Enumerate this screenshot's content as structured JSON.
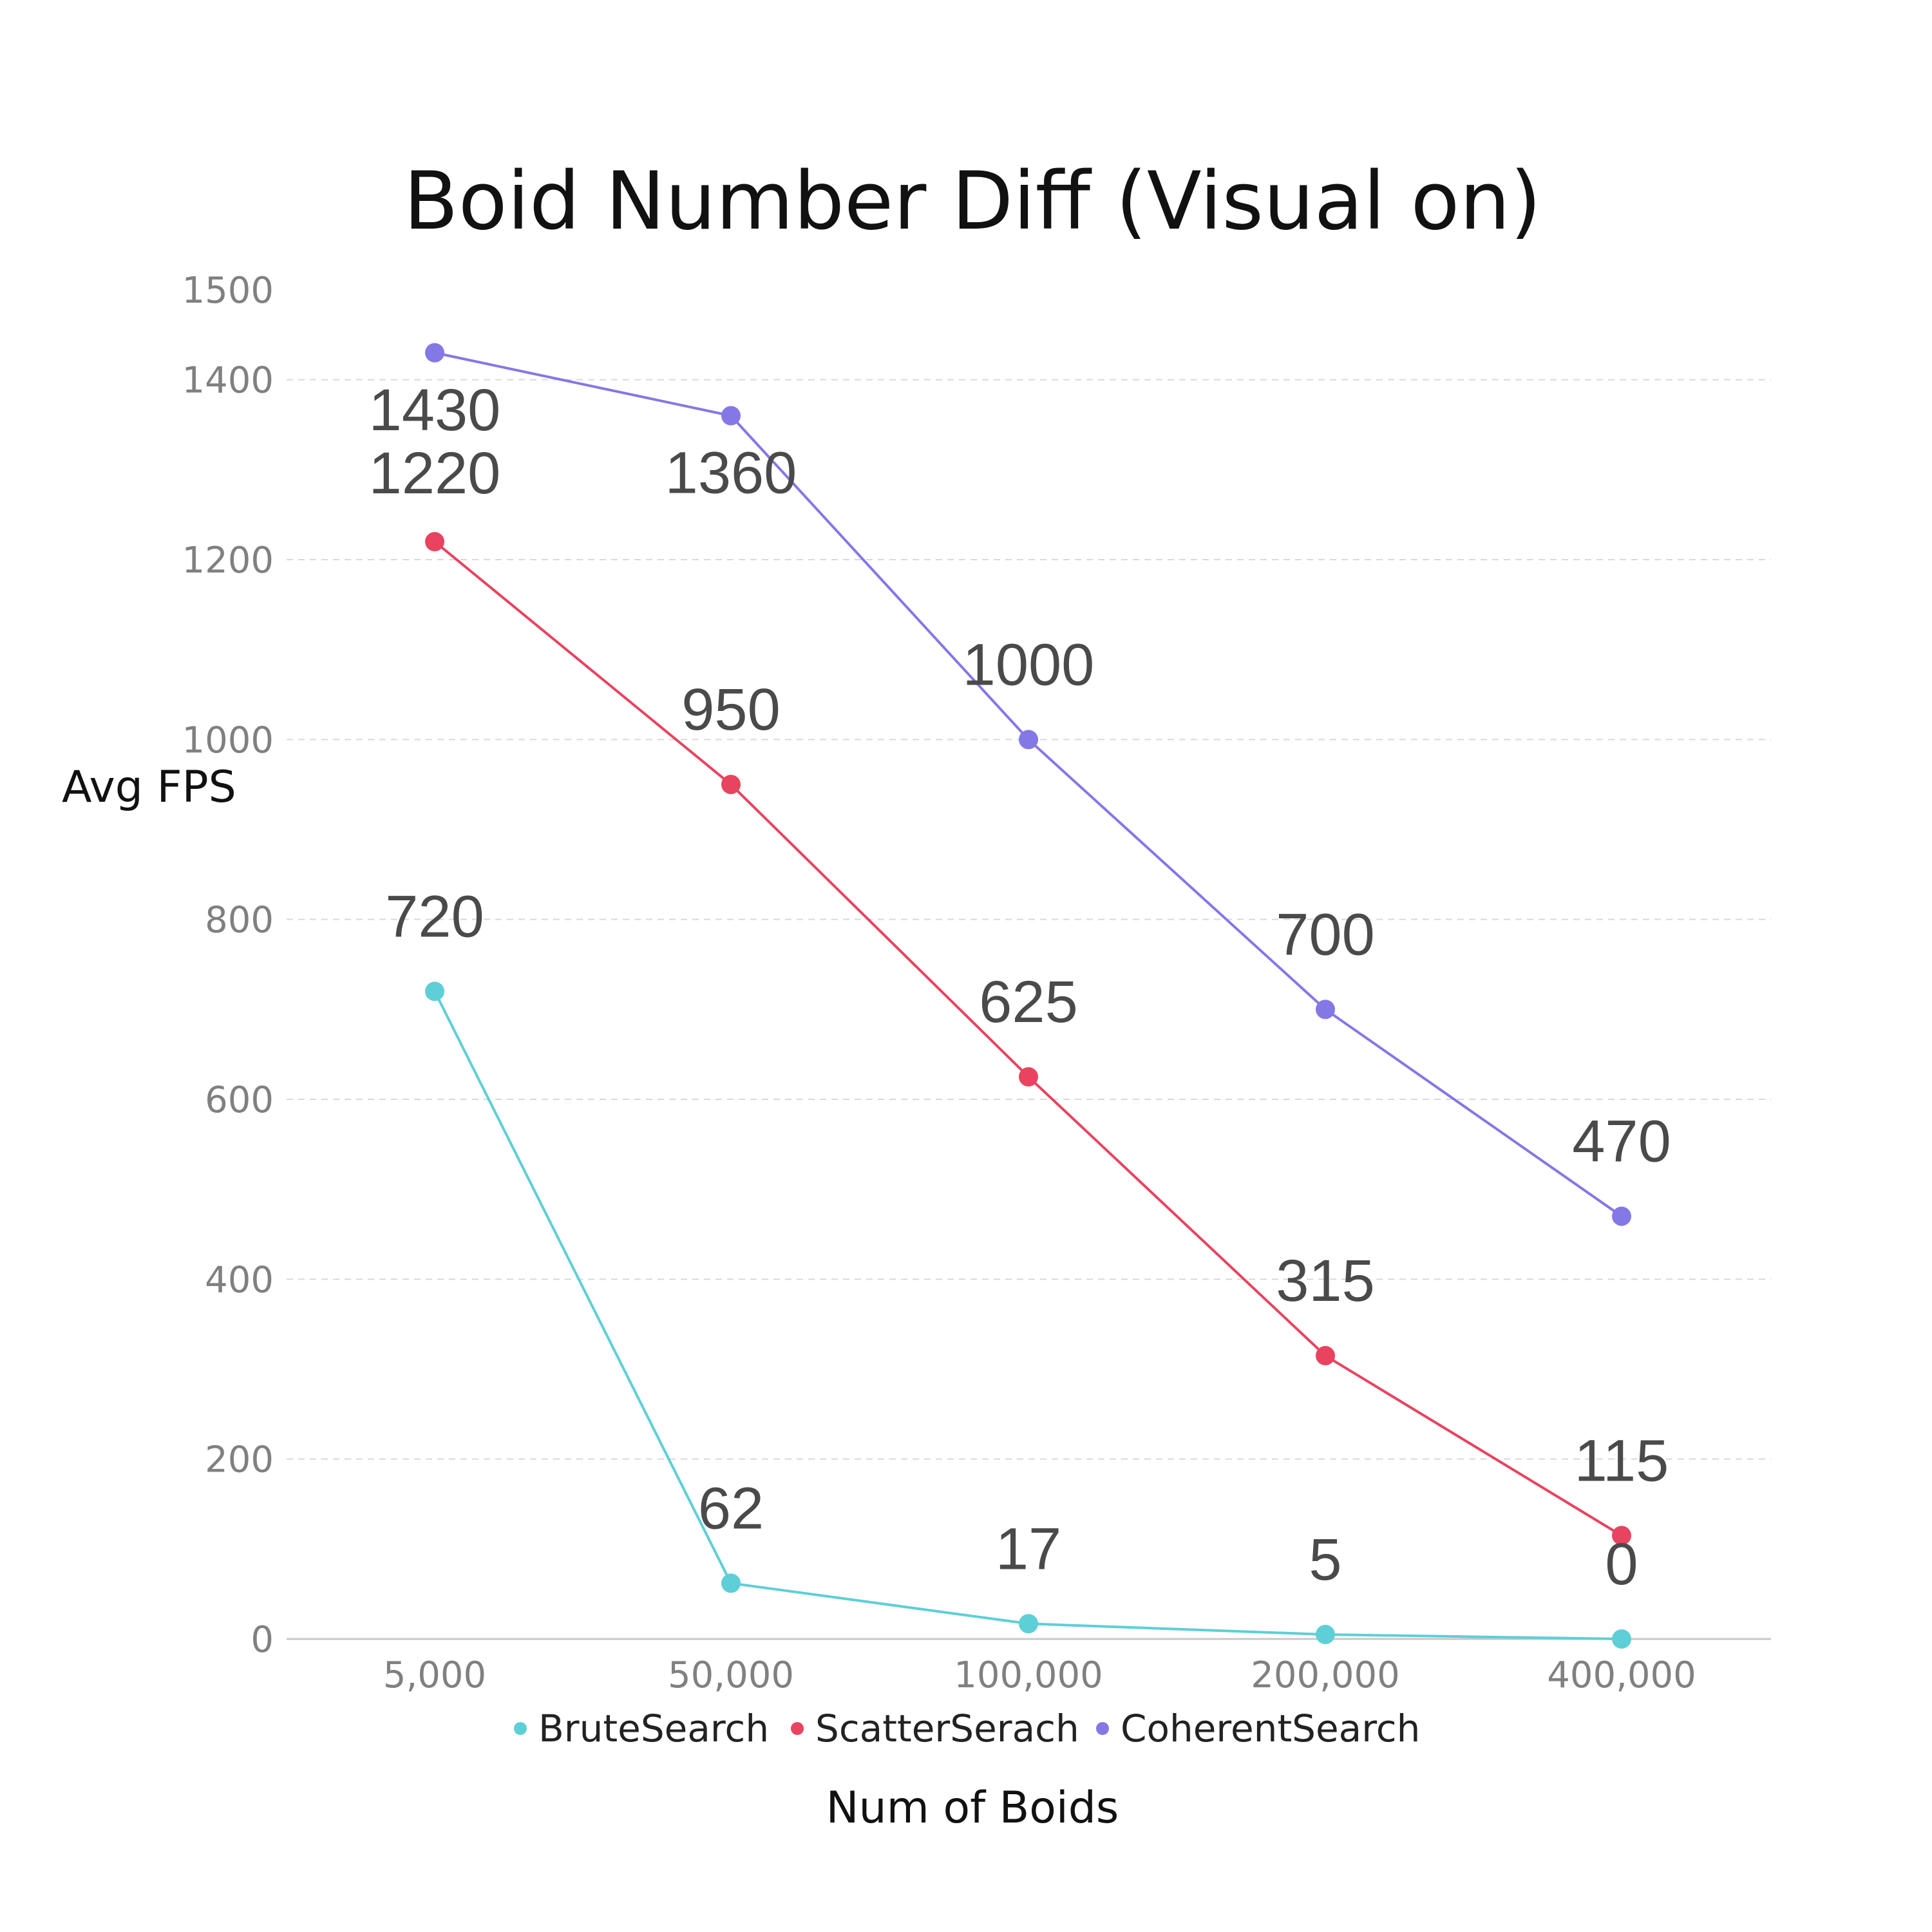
{
  "chart_data": {
    "type": "line",
    "title": "Boid Number Diff (Visual on)",
    "xlabel": "Num of Boids",
    "ylabel": "Avg FPS",
    "categories": [
      "5,000",
      "50,000",
      "100,000",
      "200,000",
      "400,000"
    ],
    "ylim": [
      0,
      1500
    ],
    "yticks": [
      0,
      200,
      400,
      600,
      800,
      1000,
      1200,
      1400,
      1500
    ],
    "grid": true,
    "legend": "bottom",
    "series": [
      {
        "name": "BruteSearch",
        "color": "#5ecfd6",
        "values": [
          720,
          62,
          17,
          5,
          0
        ]
      },
      {
        "name": "ScatterSerach",
        "color": "#e8435f",
        "values": [
          1220,
          950,
          625,
          315,
          115
        ]
      },
      {
        "name": "CoherentSearch",
        "color": "#8477e6",
        "values": [
          1430,
          1360,
          1000,
          700,
          470
        ]
      }
    ]
  }
}
